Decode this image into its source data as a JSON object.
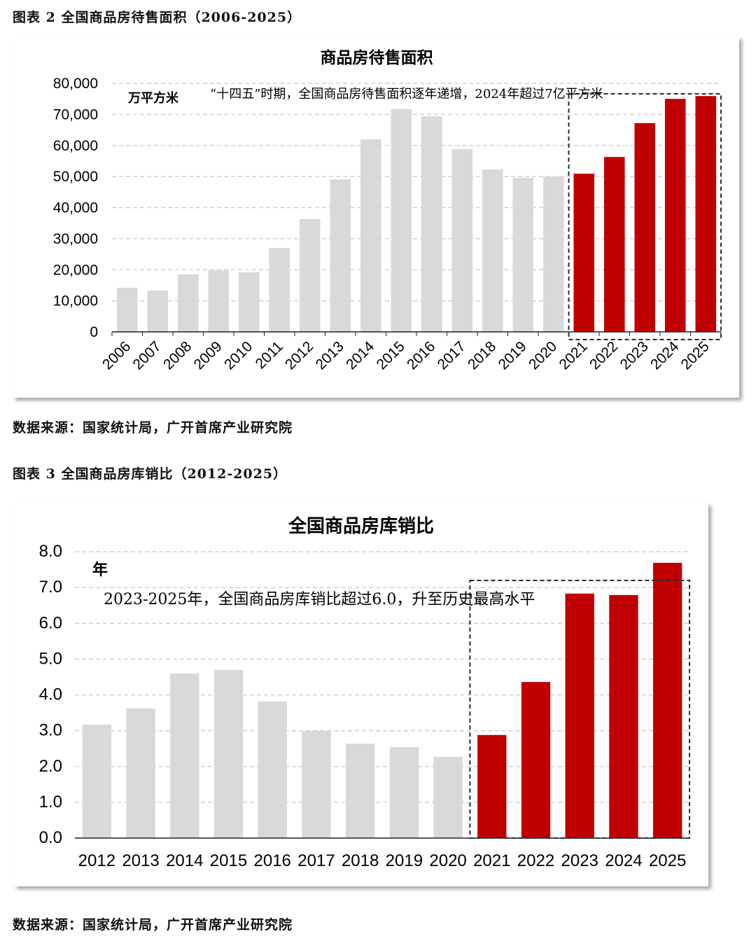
{
  "figures": [
    {
      "caption": "图表 2 全国商品房待售面积（2006-2025）",
      "source": "数据来源：国家统计局，广开首席产业研究院"
    },
    {
      "caption": "图表 3 全国商品房库销比（2012-2025）",
      "source": "数据来源：国家统计局，广开首席产业研究院"
    }
  ],
  "chart_data": [
    {
      "type": "bar",
      "title": "商品房待售面积",
      "unit_label": "万平方米",
      "annotation": "“十四五”时期，全国商品房待售面积逐年递增，2024年超过7亿平方米",
      "categories": [
        "2006",
        "2007",
        "2008",
        "2009",
        "2010",
        "2011",
        "2012",
        "2013",
        "2014",
        "2015",
        "2016",
        "2017",
        "2018",
        "2019",
        "2020",
        "2021",
        "2022",
        "2023",
        "2024",
        "2025"
      ],
      "values": [
        14200,
        13300,
        18500,
        19800,
        19200,
        27000,
        36300,
        49100,
        62000,
        71700,
        69400,
        58800,
        52300,
        49600,
        50000,
        50900,
        56300,
        67200,
        75000,
        75900
      ],
      "highlight_from": "2021",
      "ylim": [
        0,
        80000
      ],
      "yticks": [
        "0",
        "10,000",
        "20,000",
        "30,000",
        "40,000",
        "50,000",
        "60,000",
        "70,000",
        "80,000"
      ],
      "grid": true,
      "colors": {
        "base": "#d9d9d9",
        "highlight": "#c00000"
      }
    },
    {
      "type": "bar",
      "title": "全国商品房库销比",
      "unit_label": "年",
      "annotation": "2023-2025年，全国商品房库销比超过6.0，升至历史最高水平",
      "categories": [
        "2012",
        "2013",
        "2014",
        "2015",
        "2016",
        "2017",
        "2018",
        "2019",
        "2020",
        "2021",
        "2022",
        "2023",
        "2024",
        "2025"
      ],
      "values": [
        3.17,
        3.62,
        4.6,
        4.7,
        3.82,
        2.99,
        2.64,
        2.54,
        2.27,
        2.88,
        4.36,
        6.83,
        6.79,
        7.69
      ],
      "highlight_from": "2021",
      "ylim": [
        0,
        8
      ],
      "yticks": [
        "0.0",
        "1.0",
        "2.0",
        "3.0",
        "4.0",
        "5.0",
        "6.0",
        "7.0",
        "8.0"
      ],
      "grid": true,
      "colors": {
        "base": "#d9d9d9",
        "highlight": "#c00000"
      }
    }
  ]
}
